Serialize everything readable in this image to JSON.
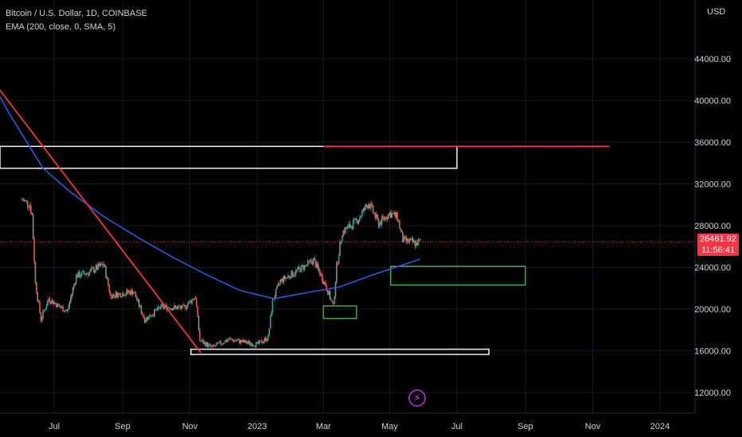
{
  "header": {
    "symbol_line": "Bitcoin / U.S. Dollar, 1D, COINBASE",
    "indicator_line": "EMA (200, close, 0, SMA, 5)"
  },
  "price_scale": {
    "currency": "USD",
    "last_price": "26461.92",
    "countdown": "11:56:41"
  },
  "colors": {
    "up": "#26a69a",
    "down": "#ef5350",
    "candle_muted": "#8a8f7a",
    "ema": "#2a5ad8",
    "trendline": "#f23645",
    "box_white": "#ffffff",
    "box_green": "#4caf50",
    "last_price": "#f23645"
  },
  "chart_data": {
    "type": "candlestick",
    "title": "Bitcoin / U.S. Dollar, 1D, COINBASE",
    "indicator": "EMA (200, close, 0, SMA, 5)",
    "ylim": [
      10000,
      48000
    ],
    "y_ticks": [
      "12000.00",
      "16000.00",
      "20000.00",
      "24000.00",
      "28000.00",
      "32000.00",
      "36000.00",
      "40000.00",
      "44000.00"
    ],
    "x_ticks": [
      "Jul",
      "Sep",
      "Nov",
      "2023",
      "Mar",
      "May",
      "Jul",
      "Sep",
      "Nov",
      "2024"
    ],
    "last_price": 26461.92,
    "price_path": [
      [
        "2022-06-01",
        30500
      ],
      [
        "2022-06-08",
        30000
      ],
      [
        "2022-06-10",
        29000
      ],
      [
        "2022-06-13",
        22500
      ],
      [
        "2022-06-18",
        19000
      ],
      [
        "2022-06-25",
        21000
      ],
      [
        "2022-07-05",
        20200
      ],
      [
        "2022-07-12",
        19800
      ],
      [
        "2022-07-20",
        23200
      ],
      [
        "2022-07-31",
        23500
      ],
      [
        "2022-08-14",
        24300
      ],
      [
        "2022-08-20",
        21300
      ],
      [
        "2022-09-10",
        21700
      ],
      [
        "2022-09-20",
        19000
      ],
      [
        "2022-10-05",
        20200
      ],
      [
        "2022-10-25",
        20100
      ],
      [
        "2022-11-05",
        21200
      ],
      [
        "2022-11-09",
        17000
      ],
      [
        "2022-11-20",
        16300
      ],
      [
        "2022-12-05",
        17100
      ],
      [
        "2022-12-31",
        16600
      ],
      [
        "2023-01-10",
        17300
      ],
      [
        "2023-01-14",
        20800
      ],
      [
        "2023-01-21",
        22700
      ],
      [
        "2023-02-15",
        24300
      ],
      [
        "2023-02-20",
        24700
      ],
      [
        "2023-03-03",
        22300
      ],
      [
        "2023-03-10",
        20200
      ],
      [
        "2023-03-13",
        24100
      ],
      [
        "2023-03-18",
        27400
      ],
      [
        "2023-03-31",
        28400
      ],
      [
        "2023-04-11",
        30200
      ],
      [
        "2023-04-20",
        28200
      ],
      [
        "2023-04-30",
        29200
      ],
      [
        "2023-05-07",
        28800
      ],
      [
        "2023-05-12",
        26600
      ],
      [
        "2023-05-24",
        26300
      ],
      [
        "2023-05-28",
        26461.92
      ]
    ],
    "ema_200": [
      [
        "2022-05-01",
        42500
      ],
      [
        "2022-05-20",
        38800
      ],
      [
        "2022-06-20",
        33500
      ],
      [
        "2022-07-15",
        31200
      ],
      [
        "2022-08-15",
        28800
      ],
      [
        "2022-09-15",
        26800
      ],
      [
        "2022-10-15",
        25000
      ],
      [
        "2022-11-15",
        23300
      ],
      [
        "2022-12-15",
        21800
      ],
      [
        "2023-01-15",
        21000
      ],
      [
        "2023-02-15",
        21600
      ],
      [
        "2023-03-15",
        22100
      ],
      [
        "2023-04-15",
        23300
      ],
      [
        "2023-05-28",
        24800
      ]
    ],
    "drawings": {
      "trendline": [
        [
          "2022-05-01",
          42500
        ],
        [
          "2022-11-10",
          15800
        ]
      ],
      "horizontal_line": [
        [
          "2023-03-01",
          35600
        ],
        [
          "2023-11-15",
          35600
        ]
      ],
      "zones": [
        {
          "kind": "resistance",
          "color": "white",
          "from": "2022-05-01",
          "to": "2023-06-30",
          "y": [
            33500,
            35600
          ]
        },
        {
          "kind": "support",
          "color": "white",
          "from": "2022-11-01",
          "to": "2023-07-29",
          "y": [
            15650,
            16150
          ]
        },
        {
          "kind": "demand",
          "color": "green",
          "from": "2023-03-01",
          "to": "2023-03-31",
          "y": [
            19100,
            20300
          ]
        },
        {
          "kind": "demand",
          "color": "green",
          "from": "2023-05-01",
          "to": "2023-08-31",
          "y": [
            22300,
            24100
          ]
        }
      ]
    }
  }
}
